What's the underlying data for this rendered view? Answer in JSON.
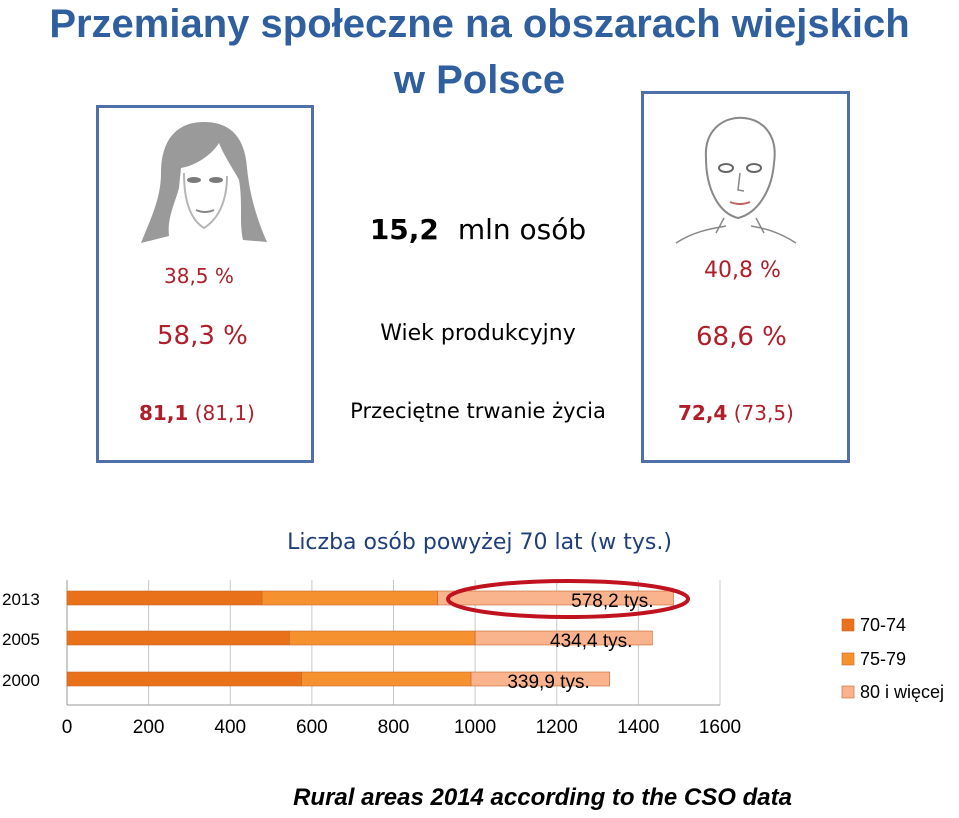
{
  "title": {
    "line1": "Przemiany społeczne na obszarach wiejskich",
    "line2": "w Polsce"
  },
  "center": {
    "population_value": "15,2",
    "population_unit": "mln osób",
    "working_age_label": "Wiek  produkcyjny",
    "life_expectancy_label": "Przeciętne trwanie życia"
  },
  "women": {
    "share": "38,5 %",
    "working_age": "58,3 %",
    "life_expectancy": "81,1",
    "life_expectancy_prev": "(81,1)"
  },
  "men": {
    "share": "40,8 %",
    "working_age": "68,6 %",
    "life_expectancy": "72,4",
    "life_expectancy_prev": "(73,5)"
  },
  "chart_data": {
    "type": "bar",
    "orientation": "horizontal",
    "stacked": true,
    "title": "Liczba osób powyżej 70 lat (w tys.)",
    "categories": [
      "2013",
      "2005",
      "2000"
    ],
    "series": [
      {
        "name": "70-74",
        "values": [
          478,
          545,
          575
        ],
        "color": "#e8711a"
      },
      {
        "name": "75-79",
        "values": [
          430,
          455,
          415
        ],
        "color": "#f5922f"
      },
      {
        "name": "80 i więcej",
        "values": [
          578.2,
          434.4,
          339.9
        ],
        "color": "#f9b48e"
      }
    ],
    "data_labels": [
      "578,2 tys.",
      "434,4 tys.",
      "339,9 tys."
    ],
    "xlim": [
      0,
      1600
    ],
    "xticks": [
      0,
      200,
      400,
      600,
      800,
      1000,
      1200,
      1400,
      1600
    ],
    "grid": true,
    "legend": "right",
    "highlight": "ellipse around 2013 data label"
  },
  "footer": "Rural areas 2014 according to the CSO data"
}
